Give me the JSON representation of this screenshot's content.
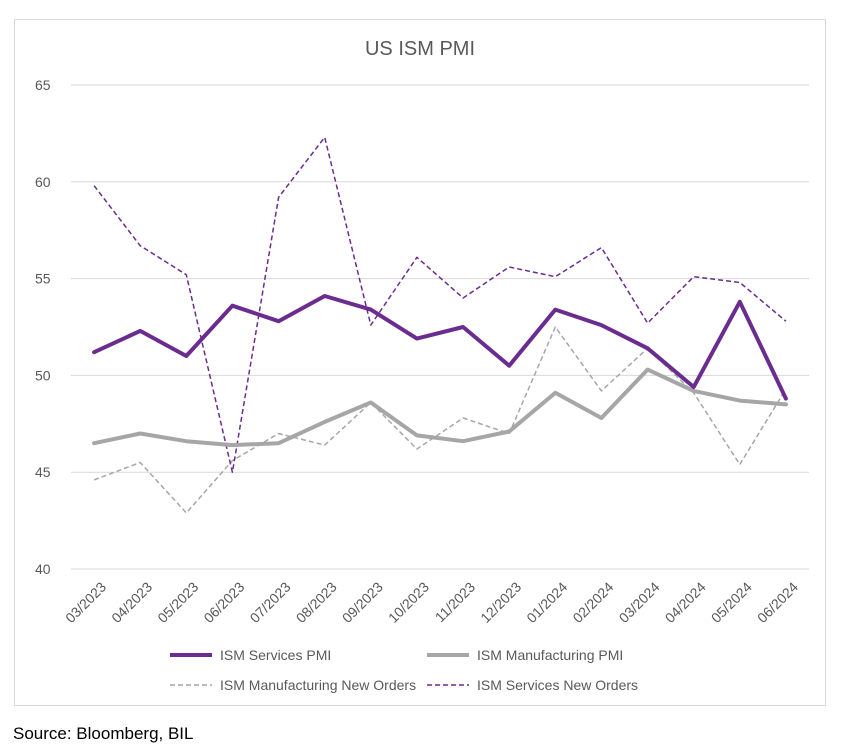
{
  "source": "Source: Bloomberg, BIL",
  "chart_data": {
    "type": "line",
    "title": "US ISM PMI",
    "xlabel": "",
    "ylabel": "",
    "ylim": [
      40,
      65
    ],
    "yticks": [
      40,
      45,
      50,
      55,
      60,
      65
    ],
    "grid": true,
    "legend_position": "bottom",
    "categories": [
      "03/2023",
      "04/2023",
      "05/2023",
      "06/2023",
      "07/2023",
      "08/2023",
      "09/2023",
      "10/2023",
      "11/2023",
      "12/2023",
      "01/2024",
      "02/2024",
      "03/2024",
      "04/2024",
      "05/2024",
      "06/2024"
    ],
    "series": [
      {
        "name": "ISM Services PMI",
        "style": "solid-thick",
        "color": "#6b2c8f",
        "values": [
          51.2,
          52.3,
          51.0,
          53.6,
          52.8,
          54.1,
          53.4,
          51.9,
          52.5,
          50.5,
          53.4,
          52.6,
          51.4,
          49.4,
          53.8,
          48.8
        ]
      },
      {
        "name": "ISM Manufacturing PMI",
        "style": "solid-thick",
        "color": "#a6a6a6",
        "values": [
          46.5,
          47.0,
          46.6,
          46.4,
          46.5,
          47.6,
          48.6,
          46.9,
          46.6,
          47.1,
          49.1,
          47.8,
          50.3,
          49.2,
          48.7,
          48.5
        ]
      },
      {
        "name": "ISM Manufacturing New Orders",
        "style": "dashed-thin",
        "color": "#a6a6a6",
        "values": [
          44.6,
          45.5,
          42.9,
          45.6,
          47.0,
          46.4,
          48.6,
          46.2,
          47.8,
          47.0,
          52.5,
          49.2,
          51.4,
          49.1,
          45.4,
          49.3
        ]
      },
      {
        "name": "ISM Services New Orders",
        "style": "dashed-thin",
        "color": "#6b2c8f",
        "values": [
          59.8,
          56.7,
          55.2,
          45.0,
          59.2,
          62.3,
          52.6,
          56.1,
          54.0,
          55.6,
          55.1,
          56.6,
          52.7,
          55.1,
          54.8,
          52.8
        ]
      }
    ]
  }
}
